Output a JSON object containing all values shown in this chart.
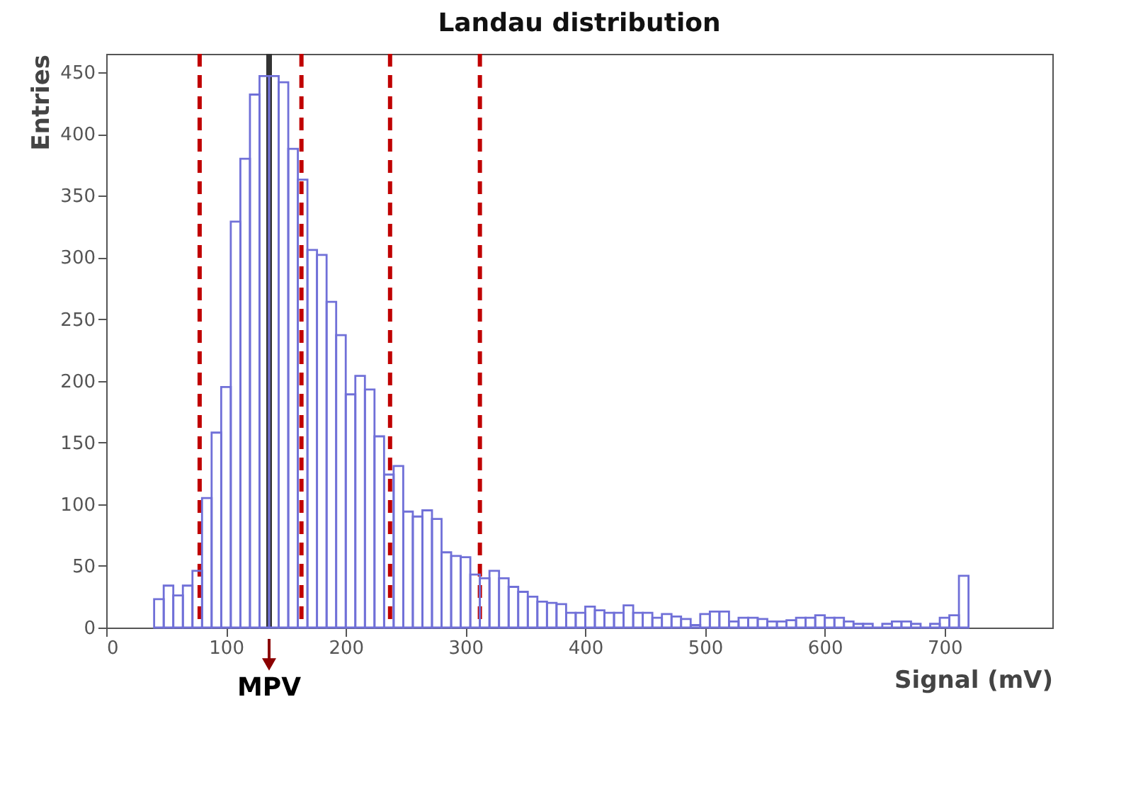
{
  "chart_data": {
    "type": "histogram",
    "title": "Landau distribution",
    "xlabel": "Signal  (mV)",
    "ylabel": "Entries",
    "bins": [
      40,
      48,
      56,
      64,
      72,
      80,
      88,
      96,
      104,
      112,
      120,
      128,
      136,
      144,
      152,
      160,
      168,
      176,
      184,
      192,
      200,
      208,
      216,
      224,
      232,
      240,
      248,
      256,
      264,
      272,
      280,
      288,
      296,
      304,
      312,
      320,
      328,
      336,
      344,
      352,
      360,
      368,
      376,
      384,
      392,
      400,
      408,
      416,
      424,
      432,
      440,
      448,
      456,
      464,
      472,
      480,
      488,
      496,
      504,
      512,
      520,
      528,
      536,
      544,
      552,
      560,
      568,
      576,
      584,
      592,
      600,
      608,
      616,
      624,
      632,
      640,
      648,
      656,
      664,
      672,
      680,
      688,
      696,
      704,
      712,
      720
    ],
    "values": [
      23,
      34,
      26,
      34,
      46,
      105,
      158,
      195,
      329,
      380,
      432,
      447,
      447,
      442,
      388,
      363,
      306,
      302,
      264,
      237,
      189,
      204,
      193,
      155,
      124,
      131,
      94,
      90,
      95,
      88,
      61,
      58,
      57,
      43,
      40,
      46,
      40,
      33,
      29,
      25,
      21,
      20,
      19,
      12,
      12,
      17,
      14,
      12,
      12,
      18,
      12,
      12,
      8,
      11,
      9,
      7,
      2,
      11,
      13,
      13,
      5,
      8,
      8,
      7,
      5,
      5,
      6,
      8,
      8,
      10,
      8,
      8,
      5,
      3,
      3,
      0,
      3,
      5,
      5,
      3,
      0,
      3,
      8,
      10,
      42
    ],
    "color": "#7070d8",
    "xlim": [
      0,
      790
    ],
    "xticks": [
      0,
      100,
      200,
      300,
      400,
      500,
      600,
      700
    ],
    "ylim": [
      0,
      465
    ],
    "yticks": [
      0,
      50,
      100,
      150,
      200,
      250,
      300,
      350,
      400,
      450
    ],
    "grid": false,
    "ref_lines": [
      {
        "axis": "x",
        "value": 78,
        "color": "#c00000",
        "line_style": "dashed"
      },
      {
        "axis": "x",
        "value": 136,
        "label": "MPV",
        "color": "#333333",
        "line_style": "solid"
      },
      {
        "axis": "x",
        "value": 163,
        "color": "#c00000",
        "line_style": "dashed"
      },
      {
        "axis": "x",
        "value": 237,
        "color": "#c00000",
        "line_style": "dashed"
      },
      {
        "axis": "x",
        "value": 312,
        "color": "#c00000",
        "line_style": "dashed"
      }
    ]
  }
}
